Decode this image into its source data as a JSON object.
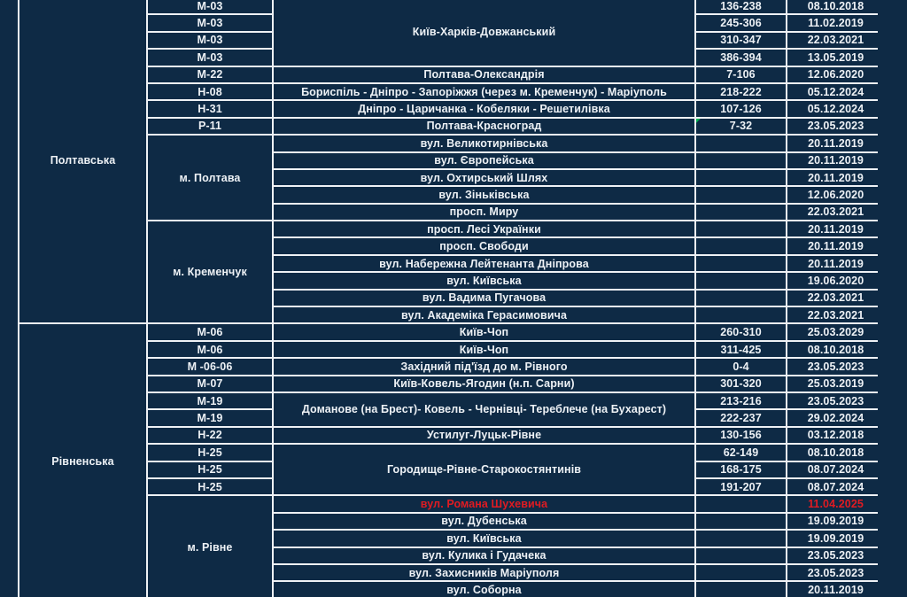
{
  "colors": {
    "background": "#0e2a45",
    "gridline": "#eef1f5",
    "text": "#edf1f5",
    "alert_red": "#e01b22",
    "indicator_green": "#00b050"
  },
  "icons": {
    "cell_error_indicator": "green-corner-triangle"
  },
  "table": {
    "columns": [
      "region",
      "road-code",
      "road-name",
      "km-range",
      "date"
    ],
    "sections": [
      {
        "region": "Полтавська",
        "rows": [
          {
            "code": "М-03",
            "name": "Київ-Харків-Довжанський",
            "name_span": 4,
            "km": "136-238",
            "date": "08.10.2018"
          },
          {
            "code": "М-03",
            "name_span": 0,
            "km": "245-306",
            "date": "11.02.2019"
          },
          {
            "code": "М-03",
            "name_span": 0,
            "km": "310-347",
            "date": "22.03.2021"
          },
          {
            "code": "М-03",
            "name_span": 0,
            "km": "386-394",
            "date": "13.05.2019"
          },
          {
            "code": "М-22",
            "name": "Полтава-Олександрія",
            "km": "7-106",
            "date": "12.06.2020"
          },
          {
            "code": "Н-08",
            "name": "Бориспіль - Дніпро - Запоріжжя (через м. Кременчук) - Маріуполь",
            "km": "218-222",
            "date": "05.12.2024"
          },
          {
            "code": "Н-31",
            "name": "Дніпро - Царичанка - Кобеляки - Решетилівка",
            "km": "107-126",
            "date": "05.12.2024"
          },
          {
            "code": "Р-11",
            "name": "Полтава-Красноград",
            "km": "7-32",
            "indicator": true,
            "date": "23.05.2023"
          },
          {
            "code": "м. Полтава",
            "code_span": 5,
            "name": "вул. Великотирнівська",
            "km": "",
            "date": "20.11.2019"
          },
          {
            "code_span": 0,
            "name": "вул. Європейська",
            "km": "",
            "date": "20.11.2019"
          },
          {
            "code_span": 0,
            "name": "вул. Охтирський Шлях",
            "km": "",
            "date": "20.11.2019"
          },
          {
            "code_span": 0,
            "name": "вул. Зіньківська",
            "km": "",
            "date": "12.06.2020"
          },
          {
            "code_span": 0,
            "name": "просп. Миру",
            "km": "",
            "date": "22.03.2021"
          },
          {
            "code": "м. Кременчук",
            "code_span": 6,
            "name": "просп. Лесі Українки",
            "km": "",
            "date": "20.11.2019"
          },
          {
            "code_span": 0,
            "name": "просп. Свободи",
            "km": "",
            "date": "20.11.2019"
          },
          {
            "code_span": 0,
            "name": "вул. Набережна Лейтенанта Дніпрова",
            "km": "",
            "date": "20.11.2019"
          },
          {
            "code_span": 0,
            "name": "вул. Київська",
            "km": "",
            "date": "19.06.2020"
          },
          {
            "code_span": 0,
            "name": "вул. Вадима Пугачова",
            "km": "",
            "date": "22.03.2021"
          },
          {
            "code_span": 0,
            "name": "вул. Академіка Герасимовича",
            "km": "",
            "date": "22.03.2021"
          }
        ]
      },
      {
        "region": "Рівненська",
        "rows": [
          {
            "code": "М-06",
            "name": "Київ-Чоп",
            "km": "260-310",
            "date": "25.03.2029"
          },
          {
            "code": "М-06",
            "name": "Київ-Чоп",
            "km": "311-425",
            "date": "08.10.2018"
          },
          {
            "code": "М -06-06",
            "name": "Західний під'їзд до м. Рівного",
            "km": "0-4",
            "date": "23.05.2023"
          },
          {
            "code": "М-07",
            "name": "Київ-Ковель-Ягодин (н.п. Сарни)",
            "km": "301-320",
            "date": "25.03.2019"
          },
          {
            "code": "М-19",
            "name": "Доманове (на Брест)- Ковель - Чернівці- Тереблече (на Бухарест)",
            "name_span": 2,
            "km": "213-216",
            "date": "23.05.2023"
          },
          {
            "code": "М-19",
            "name_span": 0,
            "km": "222-237",
            "date": "29.02.2024"
          },
          {
            "code": "Н-22",
            "name": "Устилуг-Луцьк-Рівне",
            "km": "130-156",
            "date": "03.12.2018"
          },
          {
            "code": "Н-25",
            "name": "Городище-Рівне-Старокостянтинів",
            "name_span": 3,
            "km": "62-149",
            "date": "08.10.2018"
          },
          {
            "code": "Н-25",
            "name_span": 0,
            "km": "168-175",
            "date": "08.07.2024"
          },
          {
            "code": "Н-25",
            "name_span": 0,
            "km": "191-207",
            "date": "08.07.2024"
          },
          {
            "code": "м. Рівне",
            "code_span": 6,
            "name": "вул. Романа Шухевича",
            "red": true,
            "km": "",
            "date": "11.04.2025"
          },
          {
            "code_span": 0,
            "name": "вул. Дубенська",
            "km": "",
            "date": "19.09.2019"
          },
          {
            "code_span": 0,
            "name": "вул. Київська",
            "km": "",
            "date": "19.09.2019"
          },
          {
            "code_span": 0,
            "name": "вул. Кулика і Гудачека",
            "km": "",
            "date": "23.05.2023"
          },
          {
            "code_span": 0,
            "name": "вул. Захисників Маріуполя",
            "km": "",
            "date": "23.05.2023"
          },
          {
            "code_span": 0,
            "name": "вул. Соборна",
            "km": "",
            "date": "20.11.2019"
          }
        ]
      }
    ]
  }
}
